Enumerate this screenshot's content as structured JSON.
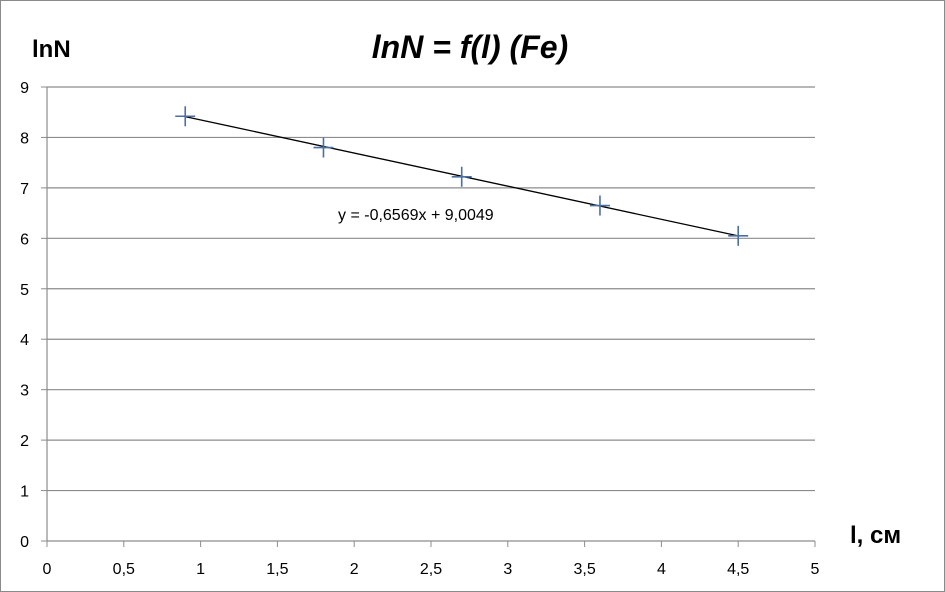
{
  "chart_data": {
    "type": "scatter",
    "title": "lnN = f(l) (Fe)",
    "xlabel": "l, см",
    "ylabel": "lnN",
    "xlim": [
      0,
      5
    ],
    "ylim": [
      0,
      9
    ],
    "x_ticks": [
      "0",
      "0,5",
      "1",
      "1,5",
      "2",
      "2,5",
      "3",
      "3,5",
      "4",
      "4,5",
      "5"
    ],
    "y_ticks": [
      "0",
      "1",
      "2",
      "3",
      "4",
      "5",
      "6",
      "7",
      "8",
      "9"
    ],
    "grid": "horizontal",
    "legend": "none",
    "marker": "plus",
    "series": [
      {
        "x": [
          0.9,
          1.8,
          2.7,
          3.6,
          4.5
        ],
        "y": [
          8.42,
          7.8,
          7.22,
          6.65,
          6.05
        ]
      }
    ],
    "trendline": {
      "slope": -0.6569,
      "intercept": 9.0049,
      "x_range": [
        0.9,
        4.5
      ],
      "equation": "y = -0,6569x + 9,0049"
    },
    "colors": {
      "marker": "#4a6fa5",
      "trendline": "#000000",
      "grid": "#8c8c8c",
      "axis": "#8c8c8c"
    }
  }
}
